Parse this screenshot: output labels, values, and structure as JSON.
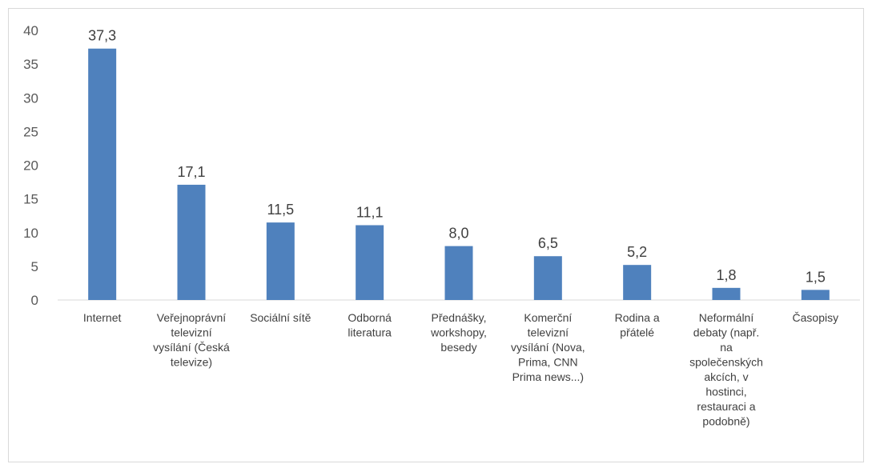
{
  "chart_data": {
    "type": "bar",
    "categories": [
      [
        "Internet"
      ],
      [
        "Veřejnoprávní",
        "televizní",
        "vysílání (Česká",
        "televize)"
      ],
      [
        "Sociální sítě"
      ],
      [
        "Odborná",
        "literatura"
      ],
      [
        "Přednášky,",
        "workshopy,",
        "besedy"
      ],
      [
        "Komerční",
        "televizní",
        "vysílání (Nova,",
        "Prima, CNN",
        "Prima news...)"
      ],
      [
        "Rodina a",
        "přátelé"
      ],
      [
        "Neformální",
        "debaty (např.",
        "na",
        "společenských",
        "akcích, v",
        "hostinci,",
        "restauraci a",
        "podobně)"
      ],
      [
        "Časopisy"
      ]
    ],
    "values": [
      37.3,
      17.1,
      11.5,
      11.1,
      8.0,
      6.5,
      5.2,
      1.8,
      1.5
    ],
    "value_labels": [
      "37,3",
      "17,1",
      "11,5",
      "11,1",
      "8,0",
      "6,5",
      "5,2",
      "1,8",
      "1,5"
    ],
    "yticks": [
      0,
      5,
      10,
      15,
      20,
      25,
      30,
      35,
      40
    ],
    "ylim": [
      0,
      40
    ],
    "title": "",
    "xlabel": "",
    "ylabel": "",
    "grid": false,
    "bar_color": "#4f81bd"
  }
}
